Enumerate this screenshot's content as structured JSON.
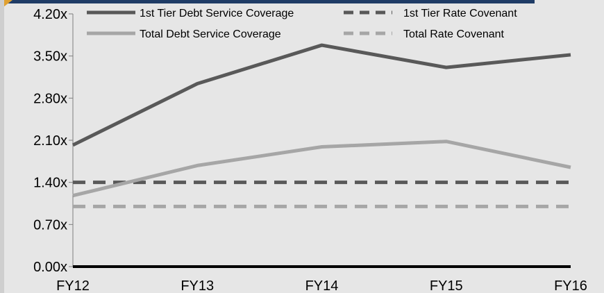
{
  "chart_data": {
    "type": "line",
    "title": "",
    "xlabel": "",
    "ylabel": "",
    "categories": [
      "FY12",
      "FY13",
      "FY14",
      "FY15",
      "FY16"
    ],
    "y_ticks": [
      "0.00x",
      "0.70x",
      "1.40x",
      "2.10x",
      "2.80x",
      "3.50x",
      "4.20x"
    ],
    "ylim": [
      0,
      4.2
    ],
    "grid": false,
    "legend_position": "top",
    "series": [
      {
        "name": "1st Tier Debt Service Coverage",
        "values": [
          2.02,
          3.04,
          3.68,
          3.31,
          3.52
        ],
        "color": "#595959",
        "style": "solid"
      },
      {
        "name": "1st Tier Rate Covenant",
        "values": [
          1.4,
          1.4,
          1.4,
          1.4,
          1.4
        ],
        "color": "#595959",
        "style": "dashed"
      },
      {
        "name": "Total Debt Service Coverage",
        "values": [
          1.18,
          1.68,
          1.99,
          2.08,
          1.65
        ],
        "color": "#a6a6a6",
        "style": "solid"
      },
      {
        "name": "Total Rate Covenant",
        "values": [
          1.0,
          1.0,
          1.0,
          1.0,
          1.0
        ],
        "color": "#a6a6a6",
        "style": "dashed"
      }
    ]
  }
}
